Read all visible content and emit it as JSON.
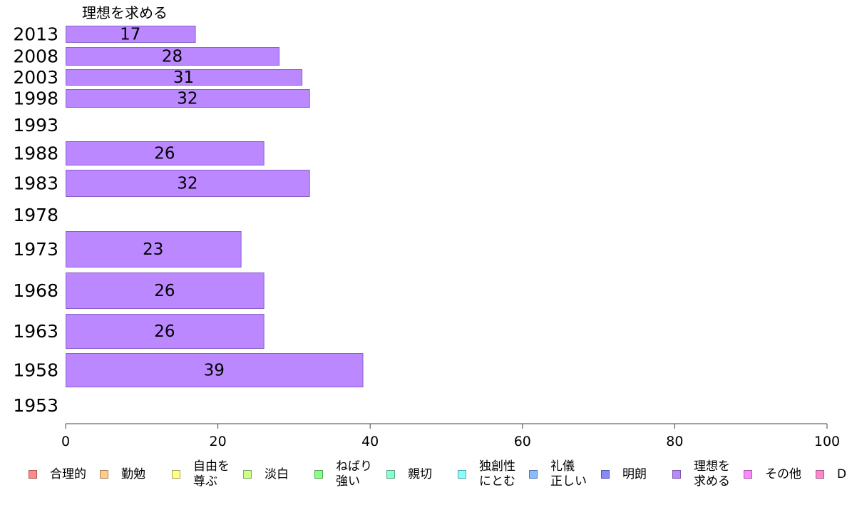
{
  "chart_data": {
    "type": "bar",
    "orientation": "horizontal",
    "title": "理想を求める",
    "categories": [
      "2013",
      "2008",
      "2003",
      "1998",
      "1993",
      "1988",
      "1983",
      "1978",
      "1973",
      "1968",
      "1963",
      "1958",
      "1953"
    ],
    "series": [
      {
        "name": "理想を求める",
        "color": "#bb88ff",
        "values": [
          17,
          28,
          31,
          32,
          null,
          26,
          32,
          null,
          23,
          26,
          26,
          39,
          null
        ]
      }
    ],
    "xlim": [
      0,
      100
    ],
    "xticks": [
      0,
      20,
      40,
      60,
      80,
      100
    ],
    "grid": false,
    "legend_position": "bottom",
    "legend": [
      {
        "label": "合理的",
        "color": "#ff8888"
      },
      {
        "label": "勤勉",
        "color": "#ffcc88"
      },
      {
        "label": "自由を\n尊ぶ",
        "color": "#ffff88"
      },
      {
        "label": "淡白",
        "color": "#ccff88"
      },
      {
        "label": "ねばり\n強い",
        "color": "#88ff88"
      },
      {
        "label": "親切",
        "color": "#88ffcc"
      },
      {
        "label": "独創性\nにとむ",
        "color": "#88ffff"
      },
      {
        "label": "礼儀\n正しい",
        "color": "#88bbff"
      },
      {
        "label": "明朗",
        "color": "#8888ff"
      },
      {
        "label": "理想を\n求める",
        "color": "#bb88ff"
      },
      {
        "label": "その他",
        "color": "#ff88ff"
      },
      {
        "label": "D",
        "color": "#ff88cc"
      }
    ]
  }
}
